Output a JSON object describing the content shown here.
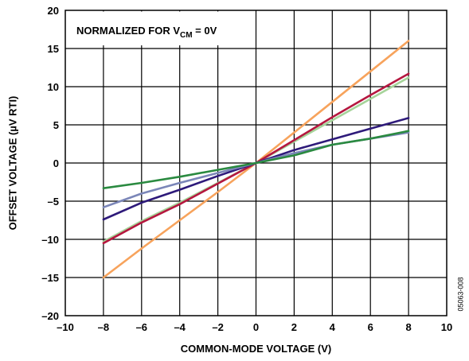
{
  "chart_data": {
    "type": "line",
    "title": "",
    "xlabel": "COMMON-MODE VOLTAGE (V)",
    "ylabel": "OFFSET VOLTAGE (µV RTI)",
    "xlim": [
      -10,
      10
    ],
    "ylim": [
      -20,
      20
    ],
    "x_ticks": [
      -10,
      -8,
      -6,
      -4,
      -2,
      0,
      2,
      4,
      6,
      8,
      10
    ],
    "y_ticks": [
      -20,
      -15,
      -10,
      -5,
      0,
      5,
      10,
      15,
      20
    ],
    "x_tick_labels": [
      "–10",
      "–8",
      "–6",
      "–4",
      "–2",
      "0",
      "2",
      "4",
      "6",
      "8",
      "10"
    ],
    "y_tick_labels": [
      "–20",
      "–15",
      "–10",
      "–5",
      "0",
      "5",
      "10",
      "15",
      "20"
    ],
    "grid": true,
    "annotation": {
      "prefix": "NORMALIZED FOR V",
      "subscript": "CM",
      "suffix": " = 0V"
    },
    "figure_id": "05063-008",
    "series": [
      {
        "color": "#f7a35c",
        "x": [
          -8,
          -6,
          -4,
          -2,
          0,
          2,
          4,
          6,
          8
        ],
        "values": [
          -15.0,
          -11.2,
          -7.5,
          -3.8,
          0,
          4.0,
          8.0,
          12.0,
          16.0
        ]
      },
      {
        "color": "#a6d49a",
        "x": [
          -8,
          -6,
          -4,
          -2,
          0,
          2,
          4,
          6,
          8
        ],
        "values": [
          -10.3,
          -7.6,
          -5.2,
          -2.6,
          0,
          2.8,
          5.6,
          8.4,
          11.2
        ]
      },
      {
        "color": "#b5173f",
        "x": [
          -8,
          -6,
          -4,
          -2,
          0,
          2,
          4,
          6,
          8
        ],
        "values": [
          -10.5,
          -7.8,
          -5.4,
          -2.7,
          0,
          3.0,
          6.0,
          8.9,
          11.7
        ]
      },
      {
        "color": "#2e1a7a",
        "x": [
          -8,
          -6,
          -4,
          -2,
          0,
          2,
          4,
          6,
          8
        ],
        "values": [
          -7.4,
          -5.2,
          -3.5,
          -1.7,
          0,
          1.7,
          3.1,
          4.5,
          5.9
        ]
      },
      {
        "color": "#7b86b8",
        "x": [
          -8,
          -6,
          -4,
          -2,
          0,
          2,
          4,
          6,
          8
        ],
        "values": [
          -5.8,
          -4.0,
          -2.6,
          -1.3,
          0,
          1.3,
          2.4,
          3.2,
          4.0
        ]
      },
      {
        "color": "#2a8a40",
        "x": [
          -8,
          -6,
          -4,
          -2,
          0,
          2,
          4,
          6,
          8
        ],
        "values": [
          -3.3,
          -2.6,
          -1.8,
          -0.9,
          0,
          1.0,
          2.4,
          3.2,
          4.2
        ]
      }
    ]
  }
}
